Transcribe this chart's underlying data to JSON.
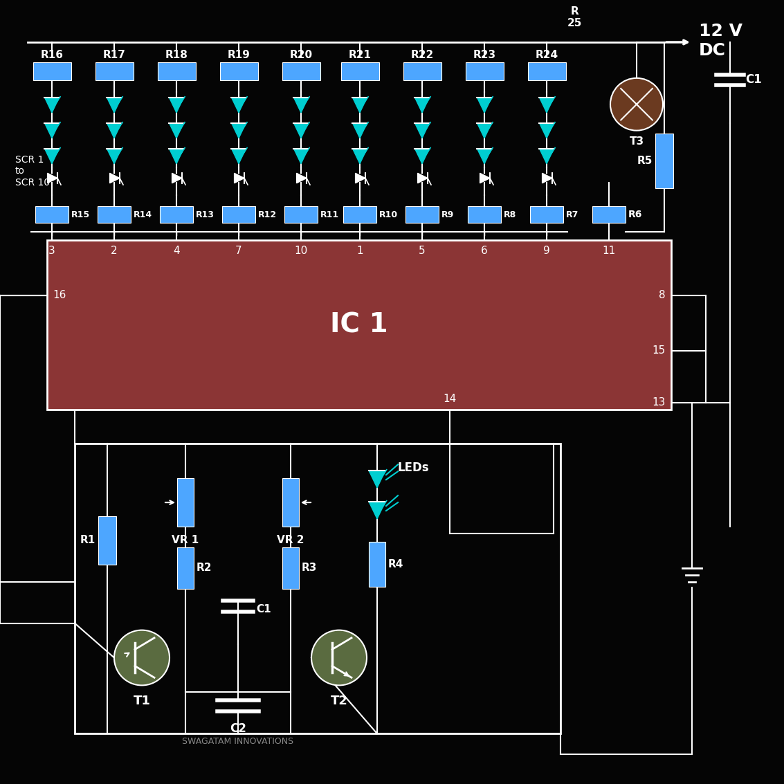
{
  "bg_color": "#050505",
  "ic_color": "#8B3535",
  "resistor_color": "#4DA6FF",
  "led_color": "#00CED1",
  "wire_color": "#FFFFFF",
  "text_color": "#FFFFFF",
  "gray_text": "#888888",
  "ic_title": "IC 1",
  "supply_label_v": "12 V",
  "supply_label_dc": "DC",
  "top_resistors": [
    "R16",
    "R17",
    "R18",
    "R19",
    "R20",
    "R21",
    "R22",
    "R23",
    "R24"
  ],
  "gate_resistors": [
    "R15",
    "R14",
    "R13",
    "R12",
    "R11",
    "R10",
    "R9",
    "R8",
    "R7"
  ],
  "ic_pins_top": [
    "3",
    "2",
    "4",
    "7",
    "10",
    "1",
    "5",
    "6",
    "9"
  ],
  "bottom_resistors": [
    "R1",
    "R2",
    "R3",
    "R4"
  ],
  "vr_labels": [
    "VR 1",
    "VR 2"
  ],
  "transistor_labels": [
    "T1",
    "T2",
    "T3"
  ],
  "cap_labels": [
    "C1",
    "C2"
  ],
  "leds_label": "LEDs",
  "r5_label": "R5",
  "r6_label": "R6",
  "r25_label": "R\n25",
  "scr_label": "SCR 1\nto\nSCR 10",
  "pin16": "16",
  "pin8": "8",
  "pin15": "15",
  "pin14": "14",
  "pin13": "13",
  "pin11": "11",
  "swagatam": "SWAGATAM INNOVATIONS"
}
